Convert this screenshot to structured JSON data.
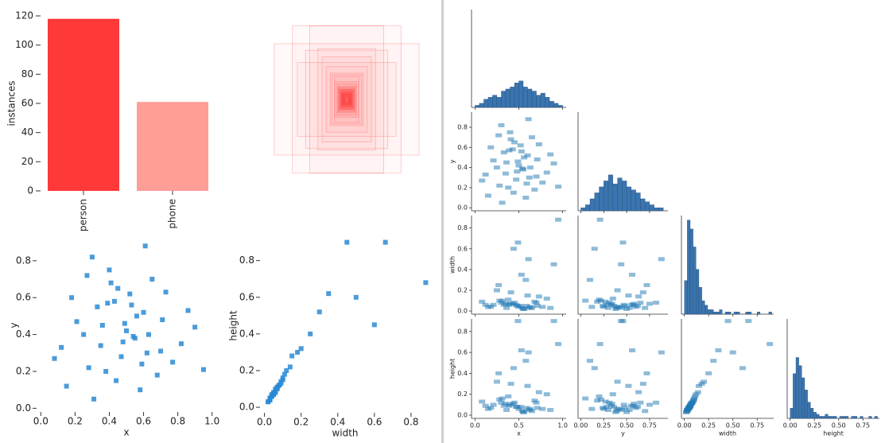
{
  "chart_data": [
    {
      "type": "bar",
      "ylabel": "instances",
      "categories": [
        "person",
        "phone"
      ],
      "values": [
        118,
        61
      ],
      "colors": [
        "#ff3838",
        "#ff9d97"
      ],
      "ylim": [
        0,
        120
      ],
      "yticks": [
        0,
        20,
        40,
        60,
        80,
        100,
        120
      ]
    },
    {
      "type": "boxes",
      "color": "#ff3838"
    },
    {
      "type": "scatter",
      "xlabel": "x",
      "ylabel": "y",
      "color": "#2a8ad4",
      "x": [
        0.5,
        0.33,
        0.62,
        0.45,
        0.71,
        0.28,
        0.55,
        0.4,
        0.82,
        0.18,
        0.6,
        0.47,
        0.36,
        0.68,
        0.52,
        0.25,
        0.77,
        0.43,
        0.58,
        0.12,
        0.65,
        0.38,
        0.9,
        0.48,
        0.3,
        0.56,
        0.73,
        0.21,
        0.44,
        0.63,
        0.08,
        0.53,
        0.35,
        0.86,
        0.41,
        0.59,
        0.27,
        0.7,
        0.49,
        0.15,
        0.61,
        0.39,
        0.95,
        0.54,
        0.31
      ],
      "values": [
        0.42,
        0.55,
        0.3,
        0.65,
        0.48,
        0.22,
        0.38,
        0.75,
        0.35,
        0.6,
        0.52,
        0.28,
        0.45,
        0.18,
        0.62,
        0.4,
        0.25,
        0.58,
        0.1,
        0.33,
        0.7,
        0.2,
        0.44,
        0.36,
        0.82,
        0.5,
        0.63,
        0.47,
        0.15,
        0.4,
        0.27,
        0.56,
        0.34,
        0.53,
        0.68,
        0.24,
        0.72,
        0.31,
        0.46,
        0.12,
        0.88,
        0.57,
        0.21,
        0.39,
        0.05
      ],
      "xlim": [
        -0.02,
        1.02
      ],
      "ylim": [
        -0.02,
        0.92
      ],
      "xticks": [
        {
          "value": 0,
          "label": "0.0"
        },
        0.2,
        0.4,
        0.6,
        0.8,
        {
          "value": 1,
          "label": "1.0"
        }
      ],
      "yticks": [
        {
          "value": 0,
          "label": "0.0"
        },
        0.2,
        0.4,
        0.6,
        0.8
      ]
    },
    {
      "type": "scatter",
      "xlabel": "width",
      "ylabel": "height",
      "color": "#2a8ad4",
      "x": [
        0.04,
        0.06,
        0.03,
        0.08,
        0.05,
        0.1,
        0.02,
        0.07,
        0.12,
        0.04,
        0.15,
        0.06,
        0.03,
        0.09,
        0.05,
        0.2,
        0.04,
        0.07,
        0.3,
        0.06,
        0.03,
        0.11,
        0.45,
        0.05,
        0.08,
        0.02,
        0.14,
        0.06,
        0.6,
        0.04,
        0.09,
        0.35,
        0.07,
        0.03,
        0.18,
        0.05,
        0.25,
        0.08,
        0.66,
        0.04,
        0.5,
        0.06,
        0.88,
        0.03,
        0.1
      ],
      "values": [
        0.06,
        0.09,
        0.05,
        0.12,
        0.07,
        0.15,
        0.03,
        0.1,
        0.2,
        0.07,
        0.28,
        0.08,
        0.05,
        0.14,
        0.08,
        0.32,
        0.06,
        0.11,
        0.52,
        0.09,
        0.04,
        0.18,
        0.9,
        0.08,
        0.12,
        0.03,
        0.22,
        0.1,
        0.45,
        0.06,
        0.13,
        0.62,
        0.11,
        0.05,
        0.3,
        0.07,
        0.4,
        0.12,
        0.9,
        0.06,
        0.6,
        0.09,
        0.68,
        0.04,
        0.16
      ],
      "xlim": [
        -0.02,
        0.9
      ],
      "ylim": [
        -0.03,
        0.92
      ],
      "xticks": [
        {
          "value": 0,
          "label": "0.0"
        },
        0.2,
        0.4,
        0.6,
        0.8
      ],
      "yticks": [
        {
          "value": 0,
          "label": "0.0"
        },
        0.2,
        0.4,
        0.6,
        0.8
      ]
    },
    {
      "type": "pairgrid",
      "color": "#1f77b4",
      "hist_color": "#3b75af",
      "variables": [
        {
          "name": "x",
          "lim": [
            -0.04,
            1.04
          ],
          "ticks": [
            {
              "value": 0,
              "label": "0.0"
            },
            0.5,
            {
              "value": 1,
              "label": "1.0"
            }
          ]
        },
        {
          "name": "y",
          "lim": [
            -0.03,
            0.95
          ],
          "ticks": [
            {
              "value": 0,
              "label": "0.00"
            },
            0.25,
            {
              "value": 0.5,
              "label": "0.50"
            },
            0.75
          ],
          "row_ticks": [
            {
              "value": 0,
              "label": "0.0"
            },
            0.2,
            0.4,
            0.6,
            0.8
          ]
        },
        {
          "name": "width",
          "lim": [
            -0.03,
            0.92
          ],
          "ticks": [
            {
              "value": 0,
              "label": "0.00"
            },
            0.25,
            {
              "value": 0.5,
              "label": "0.50"
            },
            0.75
          ],
          "row_ticks": [
            {
              "value": 0,
              "label": "0.0"
            },
            0.2,
            0.4,
            0.6,
            0.8
          ]
        },
        {
          "name": "height",
          "lim": [
            -0.03,
            0.92
          ],
          "ticks": [
            {
              "value": 0,
              "label": "0.00"
            },
            0.25,
            {
              "value": 0.5,
              "label": "0.50"
            },
            0.75
          ],
          "row_ticks": [
            {
              "value": 0,
              "label": "0.0"
            },
            0.2,
            0.4,
            0.6,
            0.8
          ]
        }
      ],
      "histograms": [
        {
          "bins": [
            0,
            0.05,
            0.1,
            0.15,
            0.2,
            0.25,
            0.3,
            0.35,
            0.4,
            0.45,
            0.5,
            0.55,
            0.6,
            0.65,
            0.7,
            0.75,
            0.8,
            0.85,
            0.9,
            0.95,
            1
          ],
          "counts": [
            1,
            2,
            4,
            5,
            6,
            5,
            8,
            9,
            10,
            12,
            13,
            10,
            9,
            8,
            6,
            7,
            5,
            3,
            2,
            1
          ],
          "ylim": [
            0,
            48
          ]
        },
        {
          "bins": [
            0,
            0.05,
            0.1,
            0.15,
            0.2,
            0.25,
            0.3,
            0.35,
            0.4,
            0.45,
            0.5,
            0.55,
            0.6,
            0.65,
            0.7,
            0.75,
            0.8,
            0.85,
            0.9
          ],
          "counts": [
            1,
            2,
            4,
            6,
            8,
            10,
            12,
            9,
            11,
            10,
            8,
            7,
            6,
            4,
            3,
            2,
            1,
            1
          ],
          "ylim": [
            0,
            33
          ]
        },
        {
          "bins": [
            0,
            0.03,
            0.06,
            0.09,
            0.12,
            0.15,
            0.18,
            0.21,
            0.24,
            0.27,
            0.3,
            0.33,
            0.36,
            0.39,
            0.42,
            0.45,
            0.48,
            0.51,
            0.54,
            0.57,
            0.6,
            0.63,
            0.66,
            0.69,
            0.72,
            0.75,
            0.78,
            0.81,
            0.84,
            0.87,
            0.9
          ],
          "counts": [
            15,
            42,
            38,
            30,
            20,
            12,
            6,
            4,
            2,
            2,
            1,
            1,
            2,
            0,
            1,
            1,
            0,
            1,
            1,
            0,
            0,
            1,
            1,
            0,
            0,
            1,
            0,
            0,
            0,
            1
          ],
          "ylim": [
            0,
            44
          ]
        },
        {
          "bins": [
            0,
            0.03,
            0.06,
            0.09,
            0.12,
            0.15,
            0.18,
            0.21,
            0.24,
            0.27,
            0.3,
            0.33,
            0.36,
            0.39,
            0.42,
            0.45,
            0.48,
            0.51,
            0.54,
            0.57,
            0.6,
            0.63,
            0.66,
            0.69,
            0.72,
            0.75,
            0.78,
            0.81,
            0.84,
            0.87,
            0.9
          ],
          "counts": [
            5,
            22,
            30,
            26,
            20,
            14,
            8,
            5,
            3,
            2,
            1,
            1,
            2,
            1,
            1,
            1,
            0,
            1,
            1,
            1,
            0,
            1,
            1,
            0,
            1,
            0,
            0,
            1,
            0,
            1
          ],
          "ylim": [
            0,
            49
          ]
        }
      ]
    }
  ]
}
